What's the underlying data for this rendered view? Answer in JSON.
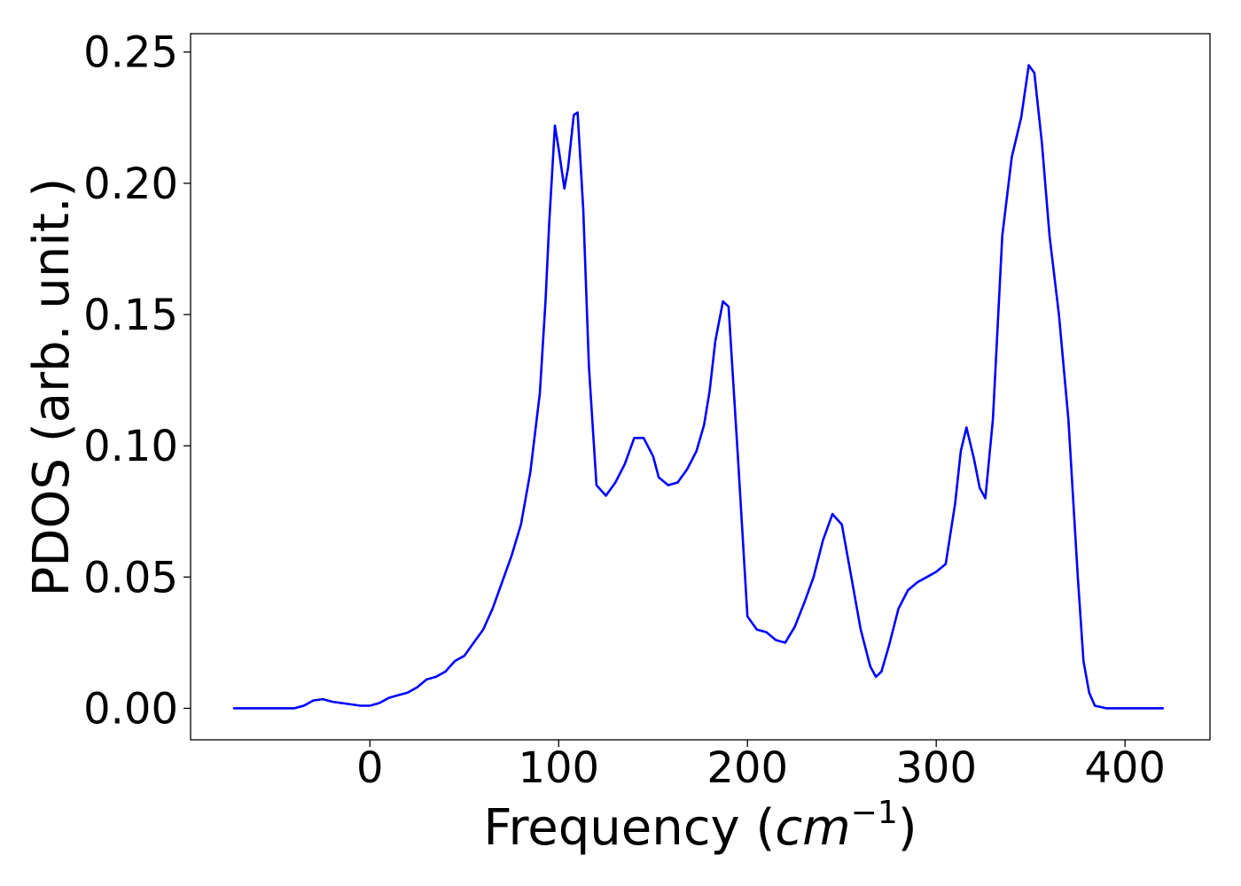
{
  "chart_data": {
    "type": "line",
    "title": "",
    "xlabel": "Frequency (",
    "xlabel_math": "cm",
    "xlabel_exponent": "−1",
    "xlabel_suffix": ")",
    "ylabel": "PDOS (arb. unit.)",
    "xlim": [
      -95,
      445
    ],
    "ylim": [
      -0.012,
      0.257
    ],
    "grid": false,
    "x_ticks": [
      0,
      100,
      200,
      300,
      400
    ],
    "x_tick_labels": [
      "0",
      "100",
      "200",
      "300",
      "400"
    ],
    "y_ticks": [
      0.0,
      0.05,
      0.1,
      0.15,
      0.2,
      0.25
    ],
    "y_tick_labels": [
      "0.00",
      "0.05",
      "0.10",
      "0.15",
      "0.20",
      "0.25"
    ],
    "series": [
      {
        "color": "#0000ff",
        "x": [
          -72,
          -40,
          -35,
          -30,
          -25,
          -20,
          -15,
          -10,
          -5,
          0,
          5,
          10,
          15,
          20,
          25,
          30,
          35,
          40,
          45,
          50,
          55,
          60,
          65,
          70,
          75,
          80,
          85,
          90,
          93,
          95,
          98,
          100,
          103,
          105,
          108,
          110,
          113,
          116,
          120,
          125,
          130,
          135,
          140,
          145,
          150,
          153,
          158,
          163,
          168,
          173,
          177,
          180,
          183,
          187,
          190,
          195,
          200,
          205,
          210,
          215,
          220,
          225,
          230,
          235,
          240,
          245,
          250,
          255,
          260,
          265,
          268,
          271,
          275,
          280,
          285,
          290,
          295,
          300,
          305,
          310,
          313,
          316,
          320,
          323,
          326,
          330,
          335,
          340,
          345,
          349,
          352,
          356,
          360,
          365,
          370,
          375,
          378,
          381,
          384,
          390,
          400,
          420
        ],
        "y": [
          0.0,
          0.0,
          0.001,
          0.003,
          0.0035,
          0.0025,
          0.002,
          0.0015,
          0.001,
          0.001,
          0.002,
          0.004,
          0.005,
          0.006,
          0.008,
          0.011,
          0.012,
          0.014,
          0.018,
          0.02,
          0.025,
          0.03,
          0.038,
          0.048,
          0.058,
          0.07,
          0.09,
          0.12,
          0.155,
          0.185,
          0.222,
          0.213,
          0.198,
          0.206,
          0.226,
          0.227,
          0.19,
          0.13,
          0.085,
          0.081,
          0.086,
          0.093,
          0.103,
          0.103,
          0.096,
          0.088,
          0.085,
          0.086,
          0.091,
          0.098,
          0.108,
          0.121,
          0.14,
          0.155,
          0.153,
          0.095,
          0.035,
          0.03,
          0.029,
          0.026,
          0.025,
          0.031,
          0.04,
          0.05,
          0.064,
          0.074,
          0.07,
          0.05,
          0.03,
          0.016,
          0.012,
          0.014,
          0.024,
          0.038,
          0.045,
          0.048,
          0.05,
          0.052,
          0.055,
          0.078,
          0.098,
          0.107,
          0.095,
          0.084,
          0.08,
          0.11,
          0.18,
          0.21,
          0.225,
          0.245,
          0.242,
          0.215,
          0.18,
          0.15,
          0.11,
          0.05,
          0.018,
          0.006,
          0.001,
          0.0,
          0.0,
          0.0
        ]
      }
    ]
  }
}
